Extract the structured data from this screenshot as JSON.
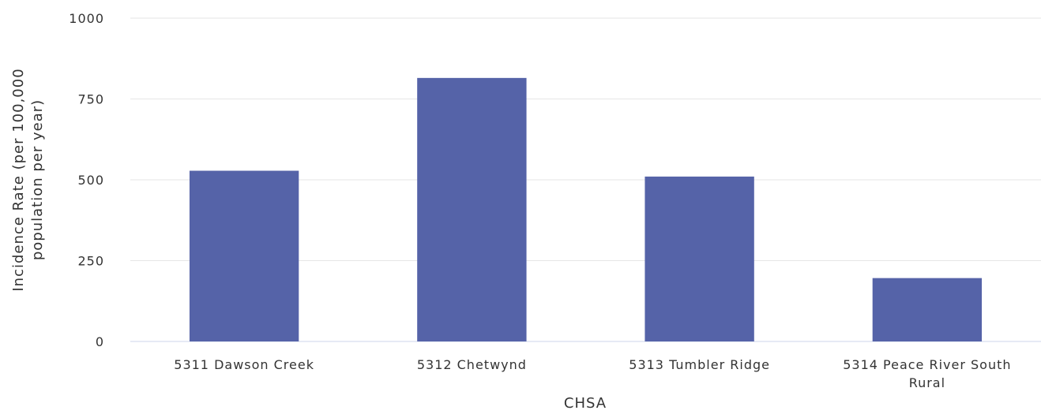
{
  "chart_data": {
    "type": "bar",
    "title": "",
    "xlabel": "CHSA",
    "ylabel_lines": [
      "Incidence Rate (per 100,000",
      "population per year)"
    ],
    "categories": [
      [
        "5311 Dawson Creek"
      ],
      [
        "5312 Chetwynd"
      ],
      [
        "5313 Tumbler Ridge"
      ],
      [
        "5314 Peace River South",
        "Rural"
      ]
    ],
    "values": [
      528,
      815,
      510,
      196
    ],
    "ylim": [
      0,
      1000
    ],
    "yticks": [
      0,
      250,
      500,
      750,
      1000
    ],
    "grid": true,
    "legend": "none",
    "bar_color": "#5563a8"
  }
}
